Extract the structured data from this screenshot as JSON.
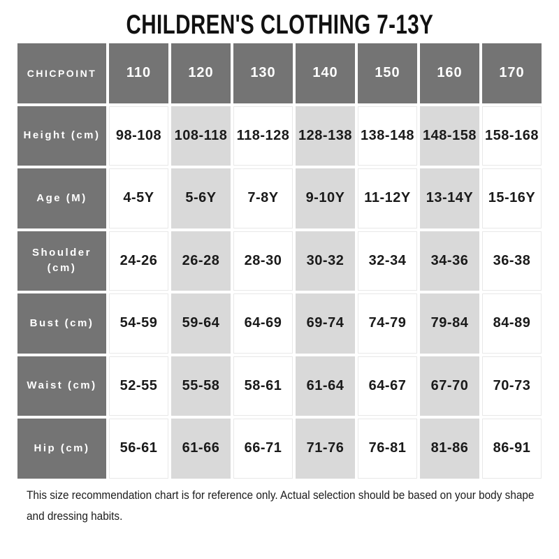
{
  "title": "CHILDREN'S CLOTHING 7-13Y",
  "footer": "This size recommendation chart is for reference only. Actual selection should be based on your body shape and dressing habits.",
  "colors": {
    "header_bg": "#747474",
    "alt_column_bg": "#d9d9d9",
    "cell_border": "#e8e8e8",
    "text": "#1a1a1a",
    "header_text": "#ffffff"
  },
  "chart_data": {
    "type": "table",
    "title": "CHILDREN'S CLOTHING 7-13Y",
    "corner_label": "CHICPOINT",
    "columns": [
      "110",
      "120",
      "130",
      "140",
      "150",
      "160",
      "170"
    ],
    "highlighted_columns": [
      "120",
      "140",
      "160"
    ],
    "rows": [
      {
        "label": "Height (cm)",
        "values": [
          "98-108",
          "108-118",
          "118-128",
          "128-138",
          "138-148",
          "148-158",
          "158-168"
        ]
      },
      {
        "label": "Age (M)",
        "values": [
          "4-5Y",
          "5-6Y",
          "7-8Y",
          "9-10Y",
          "11-12Y",
          "13-14Y",
          "15-16Y"
        ]
      },
      {
        "label": "Shoulder (cm)",
        "values": [
          "24-26",
          "26-28",
          "28-30",
          "30-32",
          "32-34",
          "34-36",
          "36-38"
        ]
      },
      {
        "label": "Bust (cm)",
        "values": [
          "54-59",
          "59-64",
          "64-69",
          "69-74",
          "74-79",
          "79-84",
          "84-89"
        ]
      },
      {
        "label": "Waist (cm)",
        "values": [
          "52-55",
          "55-58",
          "58-61",
          "61-64",
          "64-67",
          "67-70",
          "70-73"
        ]
      },
      {
        "label": "Hip (cm)",
        "values": [
          "56-61",
          "61-66",
          "66-71",
          "71-76",
          "76-81",
          "81-86",
          "86-91"
        ]
      }
    ]
  }
}
